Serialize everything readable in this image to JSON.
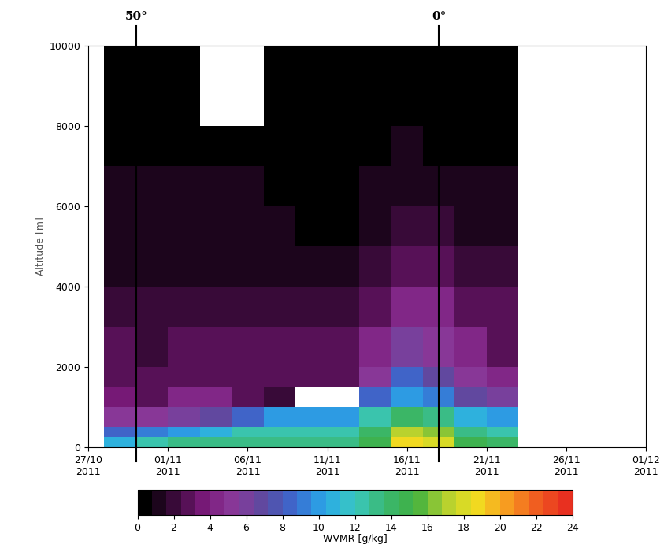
{
  "chart_data": {
    "type": "heatmap",
    "x_label": null,
    "y_label": "Altitude [m]",
    "x_edges": [
      "2011-10-28",
      "2011-10-30",
      "2011-11-01",
      "2011-11-03",
      "2011-11-05",
      "2011-11-07",
      "2011-11-09",
      "2011-11-11",
      "2011-11-13",
      "2011-11-15",
      "2011-11-17",
      "2011-11-19",
      "2011-11-21",
      "2011-11-23"
    ],
    "y_edges": [
      0,
      250,
      500,
      1000,
      1500,
      2000,
      3000,
      4000,
      5000,
      6000,
      7000,
      8000,
      9000,
      10000
    ],
    "cells": [
      [
        11,
        12,
        13,
        13,
        13,
        13,
        13,
        13,
        15,
        19,
        18,
        15,
        14
      ],
      [
        8,
        9,
        10,
        11,
        12,
        12,
        12,
        12,
        14,
        17,
        16,
        13,
        12
      ],
      [
        5,
        5,
        6,
        7,
        8,
        10,
        10,
        10,
        12,
        14,
        13,
        11,
        10
      ],
      [
        3.5,
        3,
        4,
        4,
        3,
        2,
        null,
        null,
        8,
        10,
        9,
        7,
        6
      ],
      [
        3,
        2.5,
        3,
        3,
        3,
        3,
        2.5,
        3,
        5,
        8,
        7,
        5,
        4
      ],
      [
        2.5,
        2,
        2.5,
        2.5,
        2.5,
        2.5,
        2.5,
        2.5,
        4,
        6,
        5,
        4,
        3
      ],
      [
        2,
        1.8,
        2,
        2,
        2,
        2,
        2,
        2,
        3,
        4,
        4,
        3,
        2.5
      ],
      [
        1.5,
        1.5,
        1.5,
        1.5,
        1.5,
        1.5,
        1.2,
        1.5,
        2,
        3,
        3,
        2,
        2
      ],
      [
        1.2,
        1,
        1.2,
        1.2,
        1.2,
        1,
        0.3,
        0.5,
        1.5,
        2,
        2,
        1.5,
        1.2
      ],
      [
        1,
        0.8,
        0.8,
        0.8,
        0.8,
        0.6,
        0.1,
        0.2,
        1,
        1.2,
        1.2,
        1,
        0.8
      ],
      [
        0.5,
        0.4,
        0.5,
        0.5,
        0.5,
        0.2,
        0.1,
        0.1,
        0.5,
        0.8,
        0.6,
        0.3,
        0.2
      ],
      [
        0.2,
        0.2,
        0.2,
        null,
        null,
        0.1,
        0.1,
        0.1,
        0.1,
        0.2,
        0.1,
        0.1,
        0.1
      ],
      [
        0.1,
        0.1,
        0.1,
        null,
        null,
        0.1,
        0.1,
        0.1,
        0.1,
        0.1,
        0.1,
        0.1,
        0.1
      ]
    ],
    "xlim": [
      "2011-10-27",
      "2011-12-01"
    ],
    "xticks": [
      {
        "value": "2011-10-27",
        "label": "27/10\n2011"
      },
      {
        "value": "2011-11-01",
        "label": "01/11\n2011"
      },
      {
        "value": "2011-11-06",
        "label": "06/11\n2011"
      },
      {
        "value": "2011-11-11",
        "label": "11/11\n2011"
      },
      {
        "value": "2011-11-16",
        "label": "16/11\n2011"
      },
      {
        "value": "2011-11-21",
        "label": "21/11\n2011"
      },
      {
        "value": "2011-11-26",
        "label": "26/11\n2011"
      },
      {
        "value": "2011-12-01",
        "label": "01/12\n2011"
      }
    ],
    "ylim": [
      0,
      10000
    ],
    "yticks": [
      0,
      2000,
      4000,
      6000,
      8000,
      10000
    ],
    "colors": [
      "#000000",
      "#3a0a3a",
      "#7a1a7a",
      "#8a3a9a",
      "#5a4aa0",
      "#3a6ad0",
      "#2aa8e8",
      "#3ac8c0",
      "#3ab870",
      "#40b040",
      "#b0d030",
      "#f0e020",
      "#f8a020",
      "#f06020",
      "#e83020"
    ],
    "colorbar": {
      "label": "WVMR [g/kg]",
      "range": [
        0,
        24
      ],
      "ticks": [
        0,
        2,
        4,
        6,
        8,
        10,
        12,
        14,
        16,
        18,
        20,
        22,
        24
      ]
    },
    "annotations": [
      {
        "x": "2011-10-30",
        "text": "50°"
      },
      {
        "x": "2011-11-18",
        "text": "0°"
      }
    ]
  }
}
